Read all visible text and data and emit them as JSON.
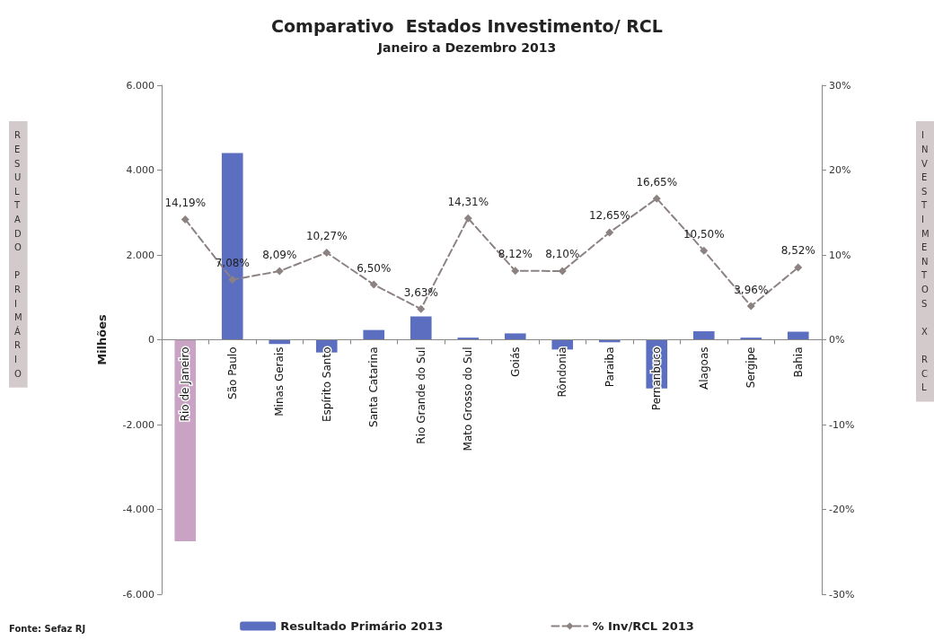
{
  "chart_data": {
    "type": "bar",
    "title": "Comparativo  Estados Investimento/ RCL",
    "subtitle": "Janeiro a Dezembro 2013",
    "ylabel": "Milhões",
    "y2label": "INVESTIMENTOS X RCL",
    "annotations": [
      "RESULTADO PRIMÁRIO",
      "Fonte: Sefaz RJ"
    ],
    "categories": [
      "Rio de Janeiro",
      "São Paulo",
      "Minas Gerais",
      "Espírito Santo",
      "Santa Catarina",
      "Rio Grande do Sul",
      "Mato Grosso do Sul",
      "Goiás",
      "Rôndonia",
      "Paraiba",
      "Pernanbuco",
      "Alagoas",
      "Sergipe",
      "Bahia"
    ],
    "series": [
      {
        "name": "Resultado Primário 2013",
        "color": "#5b6ec0",
        "colors": [
          "#c9a3c3",
          "#5b6ec0",
          "#5b6ec0",
          "#5b6ec0",
          "#5b6ec0",
          "#5b6ec0",
          "#5b6ec0",
          "#5b6ec0",
          "#5b6ec0",
          "#5b6ec0",
          "#5b6ec0",
          "#5b6ec0",
          "#5b6ec0",
          "#5b6ec0"
        ],
        "values": [
          -4750,
          4400,
          -100,
          -300,
          230,
          550,
          50,
          150,
          -230,
          -60,
          -1150,
          200,
          50,
          190
        ]
      },
      {
        "name": "% Inv/RCL 2013",
        "type": "line",
        "axis": "y2",
        "color": "#8c8282",
        "marker": "diamond",
        "line_style": "dashed",
        "values": [
          14.19,
          7.08,
          8.09,
          10.27,
          6.5,
          3.63,
          14.31,
          8.12,
          8.1,
          12.65,
          16.65,
          10.5,
          3.96,
          8.52
        ],
        "value_labels": [
          "14,19%",
          "7,08%",
          "8,09%",
          "10,27%",
          "6,50%",
          "3,63%",
          "14,31%",
          "8,12%",
          "8,10%",
          "12,65%",
          "16,65%",
          "10,50%",
          "3,96%",
          "8,52%"
        ]
      }
    ],
    "ylim": [
      -6000,
      6000
    ],
    "yticks": [
      {
        "value": -6000,
        "label": "-6.000"
      },
      {
        "value": -4000,
        "label": "-4.000"
      },
      {
        "value": -2000,
        "label": "-2.000"
      },
      0,
      {
        "value": 2000,
        "label": "2.000"
      },
      {
        "value": 4000,
        "label": "4.000"
      },
      {
        "value": 6000,
        "label": "6.000"
      }
    ],
    "y2lim": [
      -30,
      30
    ],
    "y2ticks": [
      {
        "value": -30,
        "label": "-30%"
      },
      {
        "value": -20,
        "label": "-20%"
      },
      {
        "value": -10,
        "label": "-10%"
      },
      {
        "value": 0,
        "label": "0%"
      },
      {
        "value": 10,
        "label": "10%"
      },
      {
        "value": 20,
        "label": "20%"
      },
      {
        "value": 30,
        "label": "30%"
      }
    ],
    "grid": false,
    "legend": "bottom"
  }
}
